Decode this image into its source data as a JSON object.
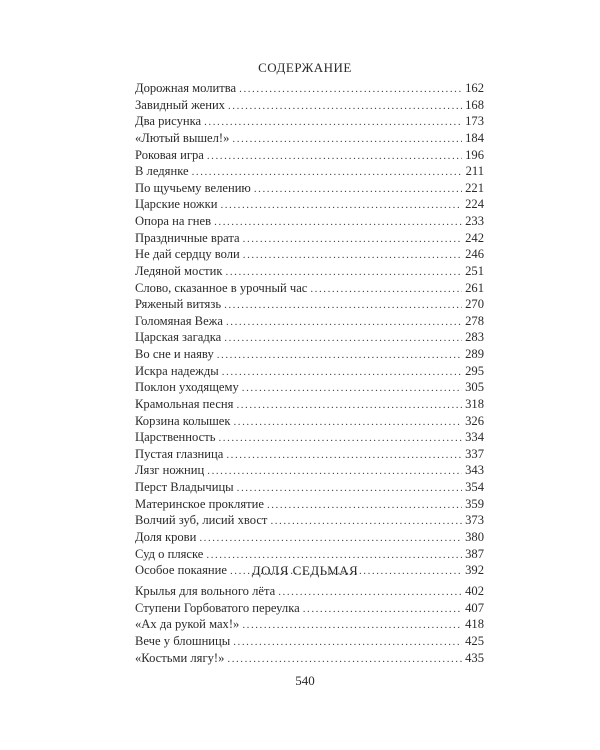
{
  "contents": {
    "title": "СОДЕРЖАНИЕ",
    "entries": [
      {
        "title": "Дорожная молитва",
        "page": "162"
      },
      {
        "title": "Завидный жених",
        "page": "168"
      },
      {
        "title": "Два рисунка",
        "page": "173"
      },
      {
        "title": "«Лютый вышел!»",
        "page": "184"
      },
      {
        "title": "Роковая игра",
        "page": "196"
      },
      {
        "title": "В ледянке",
        "page": "211"
      },
      {
        "title": "По щучьему велению",
        "page": "221"
      },
      {
        "title": "Царские ножки",
        "page": "224"
      },
      {
        "title": "Опора на гнев",
        "page": "233"
      },
      {
        "title": "Праздничные врата",
        "page": "242"
      },
      {
        "title": "Не дай сердцу воли",
        "page": "246"
      },
      {
        "title": "Ледяной мостик",
        "page": "251"
      },
      {
        "title": "Слово, сказанное в урочный час",
        "page": "261"
      },
      {
        "title": "Ряженый витязь",
        "page": "270"
      },
      {
        "title": "Голомяная Вежа",
        "page": "278"
      },
      {
        "title": "Царская загадка",
        "page": "283"
      },
      {
        "title": "Во сне и наяву",
        "page": "289"
      },
      {
        "title": "Искра надежды",
        "page": "295"
      },
      {
        "title": "Поклон уходящему",
        "page": "305"
      },
      {
        "title": "Крамольная песня",
        "page": "318"
      },
      {
        "title": "Корзина колышек",
        "page": "326"
      },
      {
        "title": "Царственность",
        "page": "334"
      },
      {
        "title": "Пустая глазница",
        "page": "337"
      },
      {
        "title": "Лязг ножниц",
        "page": "343"
      },
      {
        "title": "Перст Владычицы",
        "page": "354"
      },
      {
        "title": "Материнское проклятие",
        "page": "359"
      },
      {
        "title": "Волчий зуб, лисий хвост",
        "page": "373"
      },
      {
        "title": "Доля крови",
        "page": "380"
      },
      {
        "title": "Суд о пляске",
        "page": "387"
      },
      {
        "title": "Особое покаяние",
        "page": "392"
      }
    ]
  },
  "section": {
    "title": "ДОЛЯ СЕДЬМАЯ",
    "entries": [
      {
        "title": "Крылья для вольного лёта",
        "page": "402"
      },
      {
        "title": "Ступени Горбоватого переулка",
        "page": "407"
      },
      {
        "title": "«Ах да рукой мах!»",
        "page": "418"
      },
      {
        "title": "Вече у блошницы",
        "page": "425"
      },
      {
        "title": "«Костьми лягу!»",
        "page": "435"
      }
    ]
  },
  "page_number": "540"
}
